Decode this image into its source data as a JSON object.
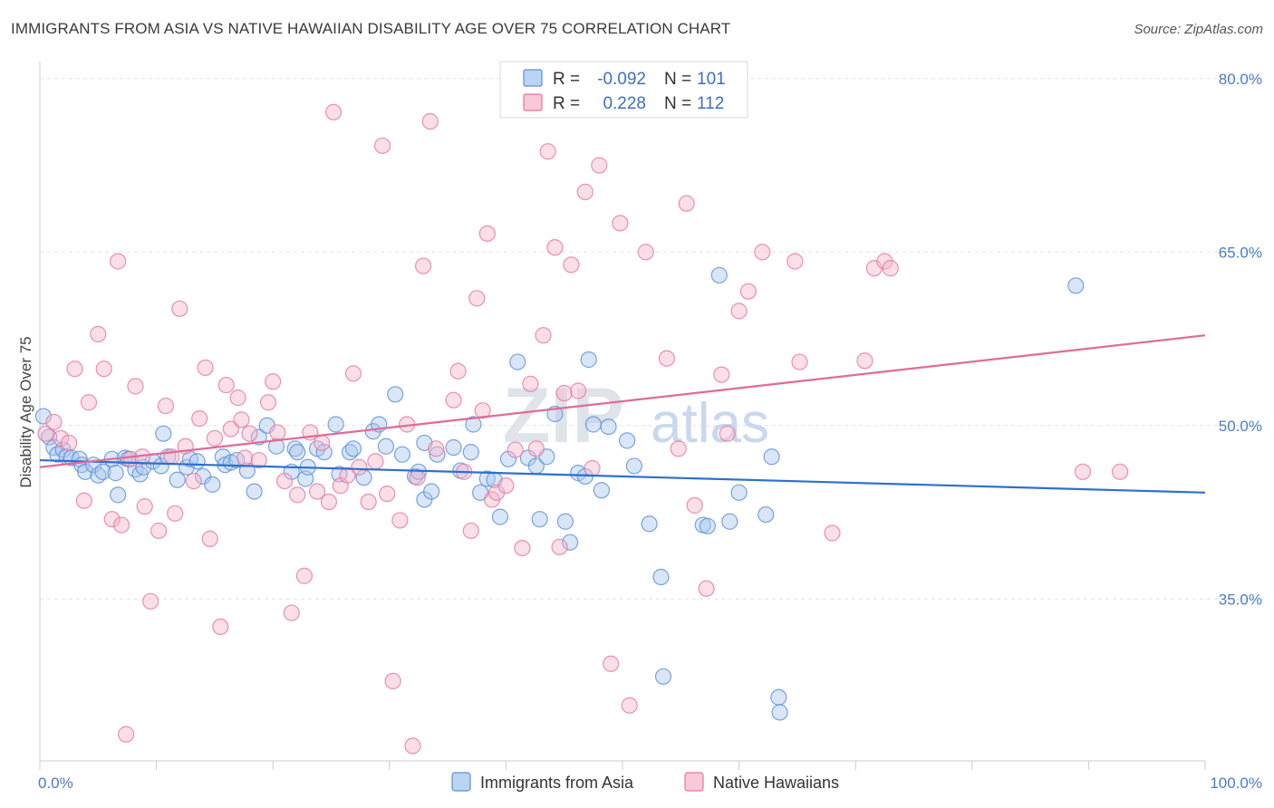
{
  "title": "IMMIGRANTS FROM ASIA VS NATIVE HAWAIIAN DISABILITY AGE OVER 75 CORRELATION CHART",
  "source": "Source: ZipAtlas.com",
  "watermark": {
    "zip": "ZIP",
    "atlas": "atlas"
  },
  "colors": {
    "blue": "#5a8fd6",
    "blue_fill": "#aac8f0",
    "pink": "#e8759c",
    "pink_fill": "#f5b8cc",
    "blue_line": "#2e6fd0",
    "pink_line": "#e06b96",
    "grid": "#dde2e8"
  },
  "legend": {
    "rows": [
      {
        "r_label": "R =",
        "r_value": "-0.092",
        "n_label": "N =",
        "n_value": "101",
        "color": "blue"
      },
      {
        "r_label": "R =",
        "r_value": "0.228",
        "n_label": "N =",
        "n_value": "112",
        "color": "pink"
      }
    ]
  },
  "bottom_legend": [
    {
      "label": "Immigrants from Asia",
      "color": "blue"
    },
    {
      "label": "Native Hawaiians",
      "color": "pink"
    }
  ],
  "chart_data": {
    "type": "scatter",
    "title": "IMMIGRANTS FROM ASIA VS NATIVE HAWAIIAN DISABILITY AGE OVER 75 CORRELATION CHART",
    "xlabel": "",
    "ylabel": "Disability Age Over 75",
    "xlim": [
      0,
      100
    ],
    "ylim": [
      21,
      81
    ],
    "x_tick_labels": [
      {
        "value": 0,
        "label": "0.0%"
      },
      {
        "value": 100,
        "label": "100.0%"
      }
    ],
    "y_ticks": [
      {
        "value": 35,
        "label": "35.0%"
      },
      {
        "value": 50,
        "label": "50.0%"
      },
      {
        "value": 65,
        "label": "65.0%"
      },
      {
        "value": 80,
        "label": "80.0%"
      }
    ],
    "grid": true,
    "legend_position": "top-center",
    "series": [
      {
        "name": "Immigrants from Asia",
        "color": "blue",
        "trend": {
          "x": [
            0,
            100
          ],
          "y": [
            47.0,
            44.2
          ]
        },
        "points": [
          [
            0.3,
            50.8
          ],
          [
            0.8,
            49.0
          ],
          [
            1.2,
            48.1
          ],
          [
            1.5,
            47.5
          ],
          [
            2.0,
            47.9
          ],
          [
            2.3,
            47.3
          ],
          [
            2.7,
            47.2
          ],
          [
            3.4,
            47.1
          ],
          [
            3.6,
            46.6
          ],
          [
            3.9,
            46.0
          ],
          [
            4.6,
            46.6
          ],
          [
            5.0,
            45.7
          ],
          [
            5.4,
            46.0
          ],
          [
            6.2,
            47.1
          ],
          [
            6.5,
            45.9
          ],
          [
            6.7,
            44.0
          ],
          [
            7.3,
            47.2
          ],
          [
            7.6,
            47.1
          ],
          [
            8.2,
            46.2
          ],
          [
            8.6,
            45.8
          ],
          [
            8.9,
            46.4
          ],
          [
            9.7,
            46.9
          ],
          [
            10.4,
            46.5
          ],
          [
            10.6,
            49.3
          ],
          [
            11.0,
            47.3
          ],
          [
            11.8,
            45.3
          ],
          [
            12.6,
            46.4
          ],
          [
            12.9,
            47.1
          ],
          [
            13.5,
            46.9
          ],
          [
            14.0,
            45.6
          ],
          [
            14.8,
            44.9
          ],
          [
            15.7,
            47.3
          ],
          [
            15.9,
            46.6
          ],
          [
            16.4,
            46.8
          ],
          [
            16.9,
            47.0
          ],
          [
            17.8,
            46.1
          ],
          [
            18.4,
            44.3
          ],
          [
            18.8,
            49.0
          ],
          [
            19.5,
            50.0
          ],
          [
            20.3,
            48.2
          ],
          [
            21.6,
            46.0
          ],
          [
            21.9,
            48.0
          ],
          [
            22.1,
            47.7
          ],
          [
            22.8,
            45.4
          ],
          [
            23.0,
            46.4
          ],
          [
            23.8,
            48.0
          ],
          [
            24.4,
            47.7
          ],
          [
            25.4,
            50.1
          ],
          [
            25.7,
            45.8
          ],
          [
            26.6,
            47.7
          ],
          [
            26.9,
            48.0
          ],
          [
            27.8,
            45.5
          ],
          [
            28.6,
            49.5
          ],
          [
            29.1,
            50.1
          ],
          [
            29.7,
            48.2
          ],
          [
            30.5,
            52.7
          ],
          [
            31.1,
            47.5
          ],
          [
            32.2,
            45.6
          ],
          [
            32.5,
            46.0
          ],
          [
            33.0,
            43.6
          ],
          [
            33.6,
            44.3
          ],
          [
            34.1,
            47.5
          ],
          [
            35.5,
            48.1
          ],
          [
            36.1,
            46.1
          ],
          [
            37.0,
            47.7
          ],
          [
            37.2,
            50.1
          ],
          [
            37.8,
            44.2
          ],
          [
            38.4,
            45.4
          ],
          [
            39.0,
            45.3
          ],
          [
            39.5,
            42.1
          ],
          [
            40.2,
            47.1
          ],
          [
            41.0,
            55.5
          ],
          [
            41.9,
            47.2
          ],
          [
            42.6,
            46.5
          ],
          [
            42.9,
            41.9
          ],
          [
            43.5,
            47.3
          ],
          [
            44.2,
            51.0
          ],
          [
            45.1,
            41.7
          ],
          [
            45.5,
            39.9
          ],
          [
            46.2,
            45.9
          ],
          [
            46.8,
            45.6
          ],
          [
            47.1,
            55.7
          ],
          [
            47.5,
            50.1
          ],
          [
            48.2,
            44.4
          ],
          [
            48.8,
            49.9
          ],
          [
            50.4,
            48.7
          ],
          [
            51.0,
            46.5
          ],
          [
            52.3,
            41.5
          ],
          [
            53.3,
            36.9
          ],
          [
            53.5,
            28.3
          ],
          [
            56.9,
            41.4
          ],
          [
            57.3,
            41.3
          ],
          [
            58.3,
            63.0
          ],
          [
            59.2,
            41.7
          ],
          [
            60.0,
            44.2
          ],
          [
            62.3,
            42.3
          ],
          [
            62.8,
            47.3
          ],
          [
            63.4,
            26.5
          ],
          [
            63.5,
            25.2
          ],
          [
            88.9,
            62.1
          ],
          [
            33.0,
            48.5
          ]
        ]
      },
      {
        "name": "Native Hawaiians",
        "color": "pink",
        "trend": {
          "x": [
            0,
            100
          ],
          "y": [
            46.4,
            57.8
          ]
        },
        "points": [
          [
            0.5,
            49.3
          ],
          [
            1.2,
            50.3
          ],
          [
            1.8,
            48.9
          ],
          [
            2.5,
            48.5
          ],
          [
            3.0,
            54.9
          ],
          [
            3.8,
            43.5
          ],
          [
            4.2,
            52.0
          ],
          [
            5.0,
            57.9
          ],
          [
            5.5,
            54.9
          ],
          [
            6.2,
            41.9
          ],
          [
            6.7,
            64.2
          ],
          [
            7.0,
            41.4
          ],
          [
            7.4,
            23.3
          ],
          [
            7.8,
            47.1
          ],
          [
            8.2,
            53.4
          ],
          [
            8.8,
            47.3
          ],
          [
            9.0,
            43.0
          ],
          [
            9.5,
            34.8
          ],
          [
            10.2,
            40.9
          ],
          [
            10.8,
            51.7
          ],
          [
            11.3,
            47.3
          ],
          [
            11.6,
            42.4
          ],
          [
            12.0,
            60.1
          ],
          [
            12.5,
            48.2
          ],
          [
            13.2,
            45.2
          ],
          [
            13.7,
            50.6
          ],
          [
            14.2,
            55.0
          ],
          [
            14.6,
            40.2
          ],
          [
            15.0,
            48.9
          ],
          [
            15.5,
            32.6
          ],
          [
            16.0,
            53.5
          ],
          [
            16.4,
            49.7
          ],
          [
            17.0,
            52.4
          ],
          [
            17.3,
            50.5
          ],
          [
            17.6,
            47.2
          ],
          [
            18.0,
            49.3
          ],
          [
            18.8,
            47.0
          ],
          [
            19.6,
            52.0
          ],
          [
            20.0,
            53.8
          ],
          [
            20.4,
            49.4
          ],
          [
            21.0,
            45.2
          ],
          [
            21.6,
            33.8
          ],
          [
            22.1,
            44.0
          ],
          [
            22.7,
            37.0
          ],
          [
            23.2,
            49.4
          ],
          [
            23.8,
            44.3
          ],
          [
            24.2,
            48.5
          ],
          [
            24.8,
            43.4
          ],
          [
            25.2,
            77.1
          ],
          [
            25.8,
            44.8
          ],
          [
            26.4,
            45.7
          ],
          [
            26.9,
            54.5
          ],
          [
            27.4,
            46.4
          ],
          [
            28.2,
            43.4
          ],
          [
            28.8,
            46.9
          ],
          [
            29.4,
            74.2
          ],
          [
            29.8,
            44.1
          ],
          [
            30.3,
            27.9
          ],
          [
            30.9,
            41.8
          ],
          [
            31.5,
            50.1
          ],
          [
            32.0,
            22.3
          ],
          [
            32.4,
            45.5
          ],
          [
            32.9,
            63.8
          ],
          [
            33.5,
            76.3
          ],
          [
            34.0,
            48.0
          ],
          [
            35.5,
            52.2
          ],
          [
            35.9,
            54.7
          ],
          [
            36.4,
            46.0
          ],
          [
            37.0,
            40.9
          ],
          [
            37.5,
            61.0
          ],
          [
            38.0,
            51.3
          ],
          [
            38.4,
            66.6
          ],
          [
            38.8,
            43.6
          ],
          [
            39.2,
            44.2
          ],
          [
            40.0,
            44.8
          ],
          [
            40.8,
            47.9
          ],
          [
            41.4,
            39.4
          ],
          [
            42.1,
            53.6
          ],
          [
            42.6,
            48.0
          ],
          [
            43.2,
            57.8
          ],
          [
            43.6,
            73.7
          ],
          [
            44.2,
            65.4
          ],
          [
            44.6,
            39.5
          ],
          [
            45.0,
            52.8
          ],
          [
            45.6,
            63.9
          ],
          [
            46.2,
            53.0
          ],
          [
            46.8,
            70.2
          ],
          [
            47.4,
            46.3
          ],
          [
            48.0,
            72.5
          ],
          [
            49.0,
            29.4
          ],
          [
            49.8,
            67.5
          ],
          [
            50.6,
            25.8
          ],
          [
            52.0,
            65.0
          ],
          [
            53.8,
            55.8
          ],
          [
            54.8,
            48.0
          ],
          [
            55.5,
            69.2
          ],
          [
            56.2,
            43.1
          ],
          [
            57.2,
            35.9
          ],
          [
            58.5,
            54.4
          ],
          [
            59.0,
            49.3
          ],
          [
            60.0,
            59.9
          ],
          [
            60.8,
            61.6
          ],
          [
            62.0,
            65.0
          ],
          [
            64.8,
            64.2
          ],
          [
            65.2,
            55.5
          ],
          [
            68.0,
            40.7
          ],
          [
            70.8,
            55.6
          ],
          [
            71.6,
            63.6
          ],
          [
            72.5,
            64.2
          ],
          [
            73.0,
            63.6
          ],
          [
            89.5,
            46.0
          ],
          [
            92.7,
            46.0
          ]
        ]
      }
    ]
  }
}
